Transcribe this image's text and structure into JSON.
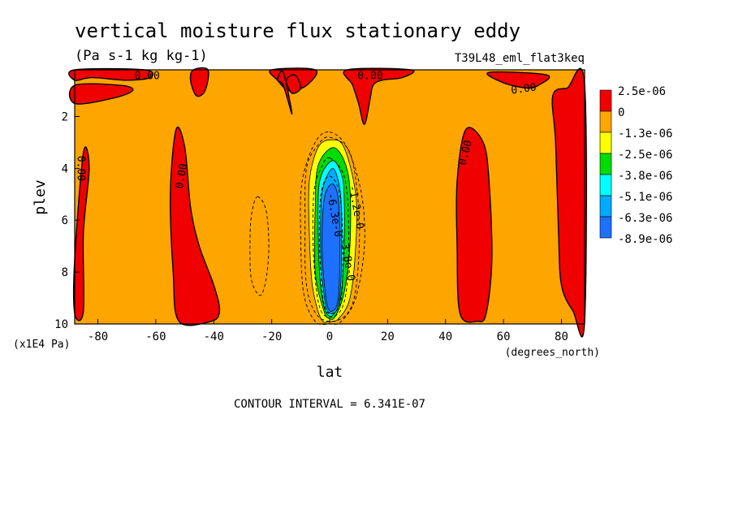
{
  "chart_data": {
    "type": "heatmap",
    "title": "vertical moisture flux stationary eddy",
    "units": "(Pa s-1 kg kg-1)",
    "dataset": "T39L48_eml_flat3keq",
    "xlabel": "lat",
    "ylabel": "plev",
    "x_unit_label": "(degrees_north)",
    "y_unit_label": "(x1E4 Pa)",
    "xlim": [
      -88,
      88
    ],
    "ylim": [
      10,
      0.2
    ],
    "x_ticks": [
      {
        "value": -80,
        "label": "-80"
      },
      {
        "value": -60,
        "label": "-60"
      },
      {
        "value": -40,
        "label": "-40"
      },
      {
        "value": -20,
        "label": "-20"
      },
      {
        "value": 0,
        "label": "0"
      },
      {
        "value": 20,
        "label": "20"
      },
      {
        "value": 40,
        "label": "40"
      },
      {
        "value": 60,
        "label": "60"
      },
      {
        "value": 80,
        "label": "80"
      }
    ],
    "y_ticks": [
      {
        "value": 2,
        "label": "2"
      },
      {
        "value": 4,
        "label": "4"
      },
      {
        "value": 6,
        "label": "6"
      },
      {
        "value": 8,
        "label": "8"
      },
      {
        "value": 10,
        "label": "10"
      }
    ],
    "background_color": "#ffa500",
    "legend": [
      {
        "label": "2.5e-06",
        "color": "#f00000"
      },
      {
        "label": "0",
        "color": "#ffa500"
      },
      {
        "label": "-1.3e-06",
        "color": "#ffff00"
      },
      {
        "label": "-2.5e-06",
        "color": "#00dd00"
      },
      {
        "label": "-3.8e-06",
        "color": "#00ffff"
      },
      {
        "label": "-5.1e-06",
        "color": "#00aaff"
      },
      {
        "label": "-6.3e-06",
        "color": "#1e70ff"
      },
      {
        "label": "-8.9e-06",
        "color": null
      }
    ],
    "contour_interval": "CONTOUR INTERVAL = 6.341E-07",
    "regions": [
      {
        "color": "#f00000",
        "points": [
          [
            -88,
            0.2
          ],
          [
            -64,
            0.2
          ],
          [
            -62,
            0.5
          ],
          [
            -70,
            0.6
          ],
          [
            -82,
            0.5
          ],
          [
            -88,
            0.6
          ]
        ]
      },
      {
        "color": "#f00000",
        "points": [
          [
            -88,
            0.8
          ],
          [
            -72,
            0.8
          ],
          [
            -68,
            1.0
          ],
          [
            -75,
            1.3
          ],
          [
            -88,
            1.5
          ]
        ]
      },
      {
        "color": "#f00000",
        "points": [
          [
            -47,
            0.2
          ],
          [
            -42,
            0.2
          ],
          [
            -43,
            1.0
          ],
          [
            -46,
            1.2
          ],
          [
            -48,
            0.6
          ]
        ]
      },
      {
        "color": "#f00000",
        "points": [
          [
            -20,
            0.2
          ],
          [
            -5,
            0.2
          ],
          [
            -8,
            0.8
          ],
          [
            -14,
            1.0
          ],
          [
            -18,
            0.6
          ]
        ]
      },
      {
        "color": "#f00000",
        "points": [
          [
            -15,
            0.6
          ],
          [
            -12,
            0.4
          ],
          [
            -10,
            0.9
          ],
          [
            -13,
            1.1
          ]
        ]
      },
      {
        "color": "#f00000",
        "points": [
          [
            -18,
            0.6
          ],
          [
            -16,
            0.3
          ],
          [
            -13,
            1.9
          ],
          [
            -16,
            0.8
          ]
        ]
      },
      {
        "color": "#f00000",
        "points": [
          [
            6,
            0.2
          ],
          [
            28,
            0.2
          ],
          [
            25,
            0.5
          ],
          [
            18,
            0.6
          ],
          [
            15,
            0.8
          ],
          [
            14,
            1.3
          ],
          [
            12,
            2.3
          ],
          [
            10,
            1.5
          ],
          [
            8,
            0.8
          ]
        ]
      },
      {
        "color": "#f00000",
        "points": [
          [
            55,
            0.3
          ],
          [
            75,
            0.4
          ],
          [
            72,
            0.8
          ],
          [
            68,
            0.9
          ],
          [
            60,
            0.7
          ]
        ]
      },
      {
        "color": "#f00000",
        "points": [
          [
            77,
            1.2
          ],
          [
            82,
            0.9
          ],
          [
            88,
            0.8
          ],
          [
            88,
            9.9
          ],
          [
            84,
            9.5
          ],
          [
            80,
            8.5
          ],
          [
            79,
            6.5
          ],
          [
            78,
            3.0
          ]
        ]
      },
      {
        "color": "#f00000",
        "points": [
          [
            -53,
            2.5
          ],
          [
            -50,
            3.2
          ],
          [
            -48,
            5.5
          ],
          [
            -45,
            7.0
          ],
          [
            -40,
            8.5
          ],
          [
            -38,
            9.5
          ],
          [
            -41,
            9.9
          ],
          [
            -52,
            9.9
          ],
          [
            -54,
            8.0
          ],
          [
            -55,
            5.0
          ]
        ]
      },
      {
        "color": "#f00000",
        "points": [
          [
            47,
            2.5
          ],
          [
            53,
            3.0
          ],
          [
            55,
            4.5
          ],
          [
            56,
            7.5
          ],
          [
            54,
            9.6
          ],
          [
            51,
            9.9
          ],
          [
            45,
            9.6
          ],
          [
            44,
            7.0
          ],
          [
            44,
            4.5
          ]
        ]
      },
      {
        "color": "#f00000",
        "points": [
          [
            -85,
            3.4
          ],
          [
            -83,
            4.0
          ],
          [
            -85,
            6.5
          ],
          [
            -85,
            9.5
          ],
          [
            -88,
            9.6
          ],
          [
            -88,
            7.5
          ]
        ]
      },
      {
        "color": "#ffff00",
        "points": [
          [
            0.5,
            2.9
          ],
          [
            5,
            3.2
          ],
          [
            9,
            5.0
          ],
          [
            9,
            7.0
          ],
          [
            7,
            9.0
          ],
          [
            3,
            9.8
          ],
          [
            0,
            9.9
          ],
          [
            -3,
            9.8
          ],
          [
            -6,
            8.5
          ],
          [
            -7,
            6.5
          ],
          [
            -7,
            4.5
          ],
          [
            -4,
            3.2
          ]
        ]
      },
      {
        "color": "#00dd00",
        "points": [
          [
            1,
            3.2
          ],
          [
            5,
            3.7
          ],
          [
            7,
            4.8
          ],
          [
            7,
            7.0
          ],
          [
            5,
            8.8
          ],
          [
            2,
            9.7
          ],
          [
            0,
            9.8
          ],
          [
            -2,
            9.5
          ],
          [
            -5,
            8.0
          ],
          [
            -5,
            5.5
          ],
          [
            -4,
            3.9
          ]
        ]
      },
      {
        "color": "#00ffff",
        "points": [
          [
            1,
            3.7
          ],
          [
            4,
            4.2
          ],
          [
            5,
            5.0
          ],
          [
            5,
            7.0
          ],
          [
            4,
            8.8
          ],
          [
            2,
            9.5
          ],
          [
            0,
            9.7
          ],
          [
            -2,
            9.3
          ],
          [
            -3.5,
            8.0
          ],
          [
            -4,
            5.5
          ],
          [
            -3,
            4.3
          ]
        ]
      },
      {
        "color": "#00aaff",
        "points": [
          [
            1,
            4.0
          ],
          [
            3,
            4.5
          ],
          [
            4,
            5.5
          ],
          [
            4,
            8.0
          ],
          [
            3,
            9.3
          ],
          [
            0.5,
            9.6
          ],
          [
            -1.5,
            9.2
          ],
          [
            -3,
            7.5
          ],
          [
            -3,
            5.5
          ],
          [
            -2,
            4.6
          ]
        ]
      },
      {
        "color": "#1e70ff",
        "points": [
          [
            1,
            4.6
          ],
          [
            3,
            5.2
          ],
          [
            3.5,
            7.0
          ],
          [
            3,
            9.0
          ],
          [
            1,
            9.5
          ],
          [
            -1,
            9.2
          ],
          [
            -2.5,
            7.5
          ],
          [
            -2.5,
            6.0
          ],
          [
            -1.5,
            5.0
          ]
        ]
      }
    ],
    "dashed_contours": [
      [
        [
          -25,
          5.1
        ],
        [
          -22,
          5.6
        ],
        [
          -21,
          7.0
        ],
        [
          -22,
          8.3
        ],
        [
          -24,
          8.9
        ],
        [
          -27,
          8.3
        ],
        [
          -27.5,
          7.0
        ],
        [
          -27,
          5.8
        ]
      ],
      [
        [
          0,
          2.6
        ],
        [
          6,
          3.2
        ],
        [
          11,
          5.0
        ],
        [
          12,
          7.0
        ],
        [
          9,
          9.0
        ],
        [
          4,
          9.9
        ],
        [
          0,
          10
        ],
        [
          -5,
          9.9
        ],
        [
          -9,
          8.8
        ],
        [
          -10,
          6.5
        ],
        [
          -9.5,
          4.5
        ],
        [
          -5,
          3.0
        ]
      ],
      [
        [
          0,
          2.8
        ],
        [
          7,
          3.4
        ],
        [
          10,
          5.5
        ],
        [
          10,
          7.5
        ],
        [
          8,
          9.2
        ],
        [
          3,
          9.85
        ],
        [
          -4,
          9.7
        ],
        [
          -8,
          8.5
        ],
        [
          -8.5,
          6.0
        ],
        [
          -8,
          4.0
        ],
        [
          -4,
          3.1
        ]
      ],
      [
        [
          0,
          3.6
        ],
        [
          5,
          4.3
        ],
        [
          6.5,
          6.0
        ],
        [
          6,
          8.5
        ],
        [
          3,
          9.6
        ],
        [
          -3,
          9.5
        ],
        [
          -5.5,
          7.5
        ],
        [
          -5.5,
          5.0
        ],
        [
          -3,
          4.0
        ]
      ],
      [
        [
          0,
          4.3
        ],
        [
          3.5,
          5.0
        ],
        [
          4.5,
          7.0
        ],
        [
          4,
          9.0
        ],
        [
          1,
          9.6
        ],
        [
          -2,
          9.2
        ],
        [
          -3.5,
          7.0
        ],
        [
          -3,
          5.0
        ]
      ]
    ],
    "contour_labels": [
      {
        "text": "0.00",
        "lat": -63,
        "plev": 0.45,
        "rotate": 0
      },
      {
        "text": "0.00",
        "lat": 14,
        "plev": 0.45,
        "rotate": 0
      },
      {
        "text": "0.00",
        "lat": 67,
        "plev": 0.95,
        "rotate": -8
      },
      {
        "text": "0.00",
        "lat": -86,
        "plev": 4.0,
        "rotate": 90
      },
      {
        "text": "0.00",
        "lat": -51,
        "plev": 4.3,
        "rotate": -80
      },
      {
        "text": "0.00",
        "lat": 47,
        "plev": 3.4,
        "rotate": -75
      },
      {
        "text": "-1.2e-0",
        "lat": 9,
        "plev": 5.5,
        "rotate": 80
      },
      {
        "text": "-3.8e-0",
        "lat": 6,
        "plev": 7.5,
        "rotate": 80
      },
      {
        "text": "-6.3e-0",
        "lat": 1.5,
        "plev": 5.8,
        "rotate": 80
      }
    ]
  }
}
